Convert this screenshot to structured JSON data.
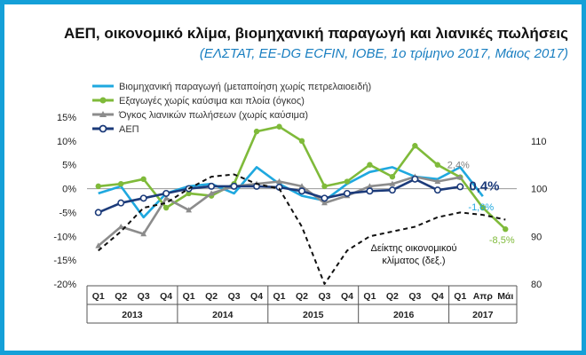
{
  "header": {
    "title": "ΑΕΠ, οικονομικό κλίμα, βιομηχανική παραγωγή και λιανικές πωλήσεις",
    "subtitle": "(ΕΛΣΤΑΤ, EE-DG ECFIN, ΙΟΒΕ, 1ο τρίμηνο 2017, Μάιος 2017)"
  },
  "chart_data": {
    "type": "line",
    "title": "ΑΕΠ, οικονομικό κλίμα, βιομηχανική παραγωγή και λιανικές πωλήσεις",
    "subtitle": "(ΕΛΣΤΑΤ, EE-DG ECFIN, ΙΟΒΕ, 1ο τρίμηνο 2017, Μάιος 2017)",
    "periods": [
      "Q1",
      "Q2",
      "Q3",
      "Q4",
      "Q1",
      "Q2",
      "Q3",
      "Q4",
      "Q1",
      "Q2",
      "Q3",
      "Q4",
      "Q1",
      "Q2",
      "Q3",
      "Q4",
      "Q1",
      "Απρ",
      "Μάι"
    ],
    "years": [
      {
        "label": "2013",
        "start": 0,
        "end": 3
      },
      {
        "label": "2014",
        "start": 4,
        "end": 7
      },
      {
        "label": "2015",
        "start": 8,
        "end": 11
      },
      {
        "label": "2016",
        "start": 12,
        "end": 15
      },
      {
        "label": "2017",
        "start": 16,
        "end": 18
      }
    ],
    "y_left": {
      "min": -20,
      "max": 15,
      "step": 5,
      "ticks": [
        "15%",
        "10%",
        "5%",
        "0%",
        "-5%",
        "-10%",
        "-15%",
        "-20%"
      ]
    },
    "y_right": {
      "min": 80,
      "max": 115,
      "ticks": [
        "110",
        "100",
        "90",
        "80"
      ],
      "tick_values": [
        110,
        100,
        90,
        80
      ]
    },
    "grid": false,
    "legend_position": "top-left",
    "series": [
      {
        "name": "Βιομηχανική παραγωγή (μεταποίηση χωρίς πετρελαιοειδή)",
        "color": "#1fa8df",
        "marker": "none",
        "axis": "left",
        "values": [
          -1.0,
          0.5,
          -6.0,
          -1.0,
          0.5,
          1.0,
          -1.0,
          4.5,
          1.0,
          -1.5,
          -2.5,
          1.0,
          3.5,
          4.5,
          2.5,
          2.0,
          4.5,
          -1.6,
          null
        ]
      },
      {
        "name": "Εξαγωγές χωρίς καύσιμα και πλοία (όγκος)",
        "color": "#7fba3a",
        "marker": "circle",
        "axis": "left",
        "values": [
          0.5,
          1.0,
          2.0,
          -4.0,
          -1.0,
          -1.5,
          1.0,
          12.0,
          13.0,
          10.0,
          0.5,
          1.5,
          5.0,
          2.5,
          9.0,
          5.0,
          2.4,
          -4.0,
          -8.5
        ]
      },
      {
        "name": "Όγκος λιανικών πωλήσεων (χωρίς καύσιμα)",
        "color": "#8c8c8c",
        "marker": "triangle",
        "axis": "left",
        "values": [
          -12.0,
          -8.0,
          -9.5,
          -2.0,
          -4.5,
          -1.0,
          0.5,
          1.0,
          1.5,
          0.5,
          -3.0,
          -1.5,
          0.5,
          1.0,
          2.5,
          1.5,
          2.4,
          null,
          null
        ]
      },
      {
        "name": "ΑΕΠ",
        "color": "#1c3b7a",
        "marker": "circle-open",
        "axis": "left",
        "values": [
          -5.0,
          -3.0,
          -2.0,
          -1.0,
          0.0,
          0.5,
          0.5,
          0.5,
          0.3,
          -0.5,
          -2.0,
          -1.0,
          -0.5,
          -0.3,
          2.0,
          -0.3,
          0.4,
          null,
          null
        ]
      },
      {
        "name": "Δείκτης οικονομικού κλίματος (δεξ.)",
        "color": "#111111",
        "marker": "none",
        "dash": true,
        "axis": "right",
        "values": [
          87,
          91,
          96,
          97,
          100,
          102.5,
          103,
          101,
          100,
          92,
          80,
          87,
          90,
          91,
          92,
          94,
          95,
          94.5,
          93.5
        ]
      }
    ],
    "annotations": [
      {
        "text": "2,4%",
        "series": 2,
        "index": 16,
        "color": "#7f7f7f"
      },
      {
        "text": "0,4%",
        "series": 3,
        "index": 16,
        "color": "#1c3b7a"
      },
      {
        "text": "-1,6%",
        "series": 0,
        "index": 17,
        "color": "#1fa8df"
      },
      {
        "text": "-8,5%",
        "series": 1,
        "index": 18,
        "color": "#7fba3a"
      }
    ],
    "right_axis_label": "Δείκτης οικονομικού κλίματος (δεξ.)",
    "right_axis_label_lines": [
      "Δείκτης οικονομικού",
      "κλίματος (δεξ.)"
    ]
  },
  "colors": {
    "frame": "#14a0d8",
    "subtitle": "#1a7fc1"
  }
}
